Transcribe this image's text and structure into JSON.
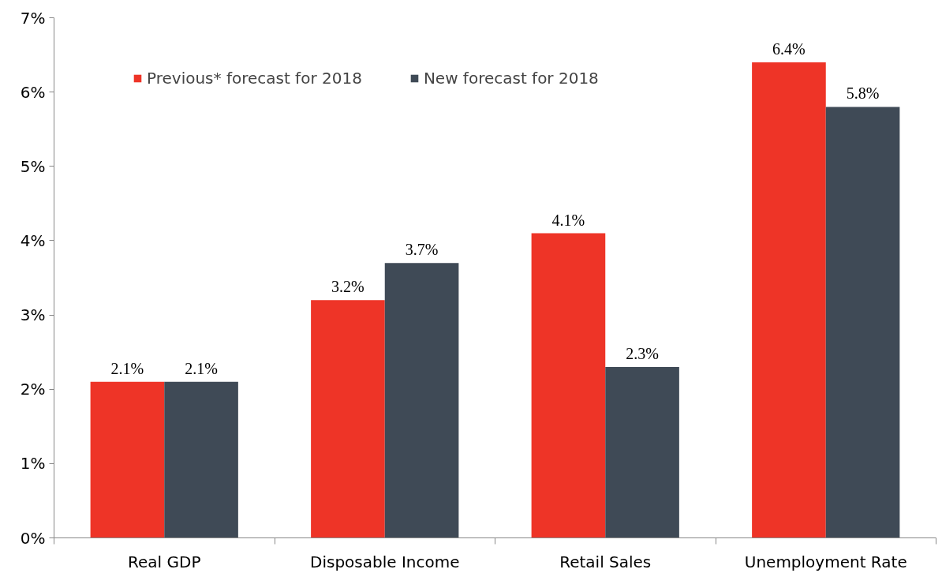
{
  "chart_data": {
    "type": "bar",
    "categories": [
      "Real GDP",
      "Disposable Income",
      "Retail Sales",
      "Unemployment Rate"
    ],
    "series": [
      {
        "name": "Previous* forecast for 2018",
        "color": "#ee3427",
        "values": [
          2.1,
          3.2,
          4.1,
          6.4
        ],
        "value_labels": [
          "2.1%",
          "3.2%",
          "4.1%",
          "6.4%"
        ]
      },
      {
        "name": "New forecast for 2018",
        "color": "#3f4a56",
        "values": [
          2.1,
          3.7,
          2.3,
          5.8
        ],
        "value_labels": [
          "2.1%",
          "3.7%",
          "2.3%",
          "5.8%"
        ]
      }
    ],
    "ylim": [
      0,
      7
    ],
    "yticks": [
      {
        "value": 0,
        "label": "0%"
      },
      {
        "value": 1,
        "label": "1%"
      },
      {
        "value": 2,
        "label": "2%"
      },
      {
        "value": 3,
        "label": "3%"
      },
      {
        "value": 4,
        "label": "4%"
      },
      {
        "value": 5,
        "label": "5%"
      },
      {
        "value": 6,
        "label": "6%"
      },
      {
        "value": 7,
        "label": "7%"
      }
    ],
    "grid": false,
    "legend": "top left"
  }
}
